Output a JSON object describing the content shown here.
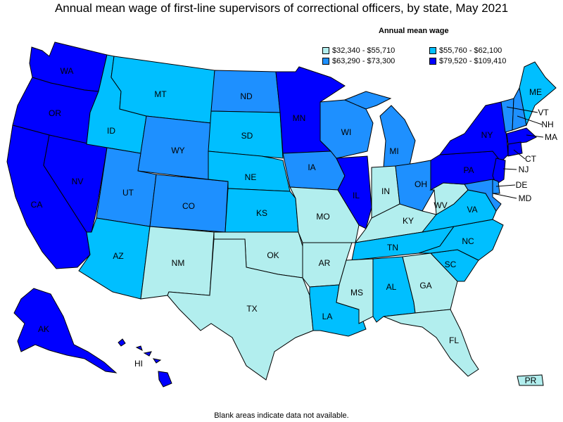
{
  "title": "Annual mean wage of first-line supervisors of correctional officers, by state, May 2021",
  "legend": {
    "title": "Annual mean wage",
    "items": [
      {
        "label": "$32,340 - $55,710",
        "color": "#b2eeee"
      },
      {
        "label": "$55,760 - $62,100",
        "color": "#00bfff"
      },
      {
        "label": "$63,290 - $73,300",
        "color": "#1e90ff"
      },
      {
        "label": "$79,520 - $109,410",
        "color": "#0000ff"
      }
    ]
  },
  "footnote": "Blank areas indicate data not available.",
  "states": {
    "WA": "WA",
    "OR": "OR",
    "CA": "CA",
    "NV": "NV",
    "ID": "ID",
    "MT": "MT",
    "WY": "WY",
    "UT": "UT",
    "AZ": "AZ",
    "CO": "CO",
    "NM": "NM",
    "ND": "ND",
    "SD": "SD",
    "NE": "NE",
    "KS": "KS",
    "OK": "OK",
    "TX": "TX",
    "MN": "MN",
    "IA": "IA",
    "MO": "MO",
    "AR": "AR",
    "LA": "LA",
    "WI": "WI",
    "IL": "IL",
    "MI": "MI",
    "IN": "IN",
    "OH": "OH",
    "KY": "KY",
    "TN": "TN",
    "MS": "MS",
    "AL": "AL",
    "GA": "GA",
    "FL": "FL",
    "SC": "SC",
    "NC": "NC",
    "VA": "VA",
    "WV": "WV",
    "PA": "PA",
    "NY": "NY",
    "ME": "ME",
    "VT": "VT",
    "NH": "NH",
    "MA": "MA",
    "CT": "CT",
    "NJ": "NJ",
    "DE": "DE",
    "MD": "MD",
    "AK": "AK",
    "HI": "HI",
    "PR": "PR"
  }
}
